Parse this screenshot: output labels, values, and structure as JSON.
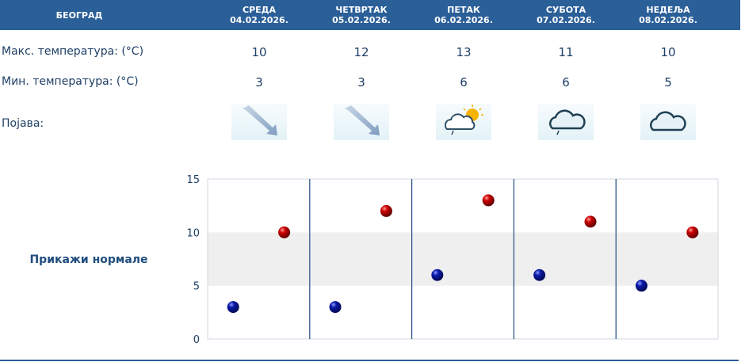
{
  "header": {
    "city": "БЕОГРАД",
    "days": [
      {
        "name": "СРЕДА",
        "date": "04.02.2026."
      },
      {
        "name": "ЧЕТВРТАК",
        "date": "05.02.2026."
      },
      {
        "name": "ПЕТАК",
        "date": "06.02.2026."
      },
      {
        "name": "СУБОТА",
        "date": "07.02.2026."
      },
      {
        "name": "НЕДЕЉА",
        "date": "08.02.2026."
      }
    ]
  },
  "rows": {
    "max_label": "Макс. температура: (°C)",
    "min_label": "Мин. температура: (°C)",
    "phenomenon_label": "Појава:"
  },
  "max_temps": [
    "10",
    "12",
    "13",
    "11",
    "10"
  ],
  "min_temps": [
    "3",
    "3",
    "6",
    "6",
    "5"
  ],
  "icons": [
    "wind-arrow-icon",
    "wind-arrow-icon",
    "partly-sunny-cloud-icon",
    "cloud-light-rain-icon",
    "cloud-icon"
  ],
  "show_normals_label": "Прикажи нормале",
  "colors": {
    "header_bg": "#2b5f98",
    "text": "#1f3f66",
    "max_marker": "#cc0000",
    "min_marker": "#0a1aa8",
    "band": "#efefef",
    "day_divider": "#1f4c7e"
  },
  "chart_data": {
    "type": "scatter",
    "ylim": [
      0,
      15
    ],
    "yticks": [
      "0",
      "5",
      "10",
      "15"
    ],
    "categories": [
      "04.02.2026.",
      "05.02.2026.",
      "06.02.2026.",
      "07.02.2026.",
      "08.02.2026."
    ],
    "series": [
      {
        "values": [
          3,
          3,
          6,
          6,
          5
        ]
      },
      {
        "values": [
          10,
          12,
          13,
          11,
          10
        ]
      }
    ],
    "shaded_band": [
      5,
      10
    ],
    "grid": false
  }
}
